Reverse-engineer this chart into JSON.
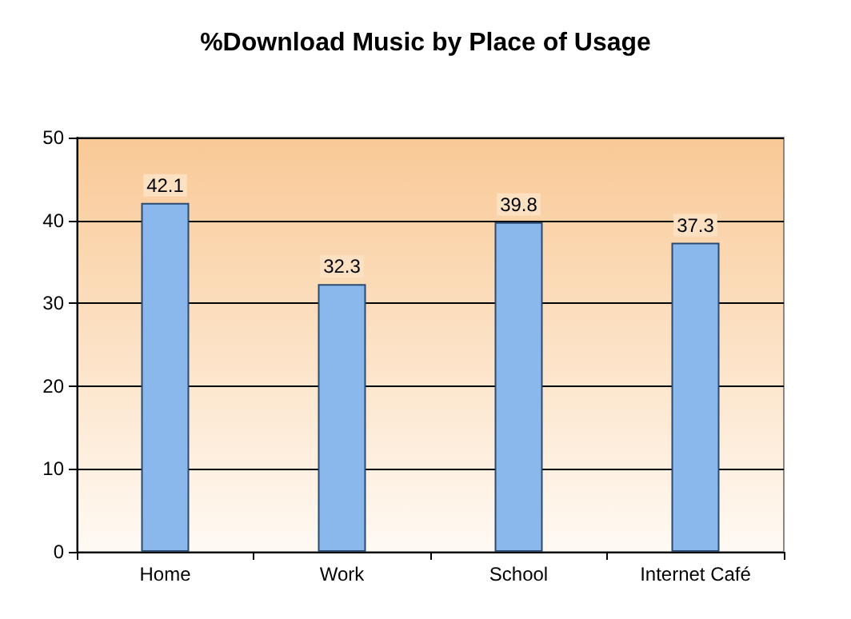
{
  "chart_data": {
    "type": "bar",
    "title": "%Download Music by Place of Usage",
    "categories": [
      "Home",
      "Work",
      "School",
      "Internet Café"
    ],
    "values": [
      42.1,
      32.3,
      39.8,
      37.3
    ],
    "color": "#8ab8ec",
    "ylim": [
      0,
      50
    ],
    "yticks": [
      0,
      10,
      20,
      30,
      40,
      50
    ],
    "grid": "y",
    "data_labels": true
  }
}
